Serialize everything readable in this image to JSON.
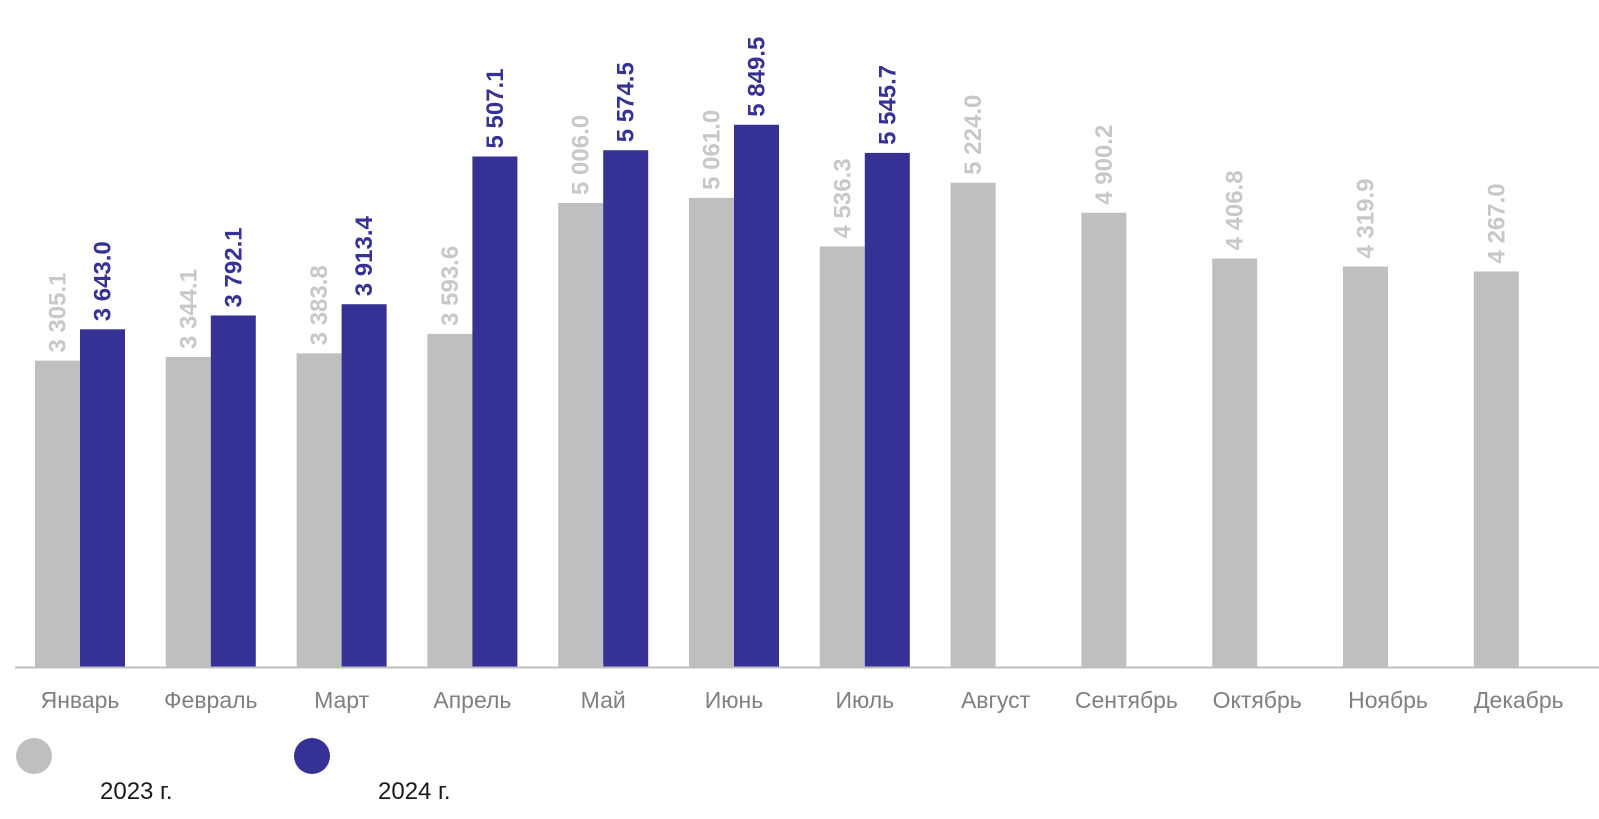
{
  "chart_data": {
    "type": "bar",
    "categories": [
      "Январь",
      "Февраль",
      "Март",
      "Апрель",
      "Май",
      "Июнь",
      "Июль",
      "Август",
      "Сентябрь",
      "Октябрь",
      "Ноябрь",
      "Декабрь"
    ],
    "series": [
      {
        "name": "2023 г.",
        "color": "#bfbfbf",
        "label_color": "#c8c8c8",
        "values": [
          3305.1,
          3344.1,
          3383.8,
          3593.6,
          5006.0,
          5061.0,
          4536.3,
          5224.0,
          4900.2,
          4406.8,
          4319.9,
          4267.0
        ],
        "labels": [
          "3 305.1",
          "3 344.1",
          "3 383.8",
          "3 593.6",
          "5 006.0",
          "5 061.0",
          "4 536.3",
          "5 224.0",
          "4 900.2",
          "4 406.8",
          "4 319.9",
          "4 267.0"
        ]
      },
      {
        "name": "2024 г.",
        "color": "#353195",
        "label_color": "#353195",
        "values": [
          3643.0,
          3792.1,
          3913.4,
          5507.1,
          5574.5,
          5849.5,
          5545.7,
          null,
          null,
          null,
          null,
          null
        ],
        "labels": [
          "3 643.0",
          "3 792.1",
          "3 913.4",
          "5 507.1",
          "5 574.5",
          "5 849.5",
          "5 545.7",
          "",
          "",
          "",
          "",
          ""
        ]
      }
    ],
    "ylim": [
      0,
      6000
    ],
    "grid": false,
    "legend_position": "bottom-left",
    "data_labels": "rotated-vertical"
  },
  "legend": {
    "items": [
      {
        "label": "2023 г.",
        "color": "#bfbfbf"
      },
      {
        "label": "2024 г.",
        "color": "#353195"
      }
    ]
  }
}
